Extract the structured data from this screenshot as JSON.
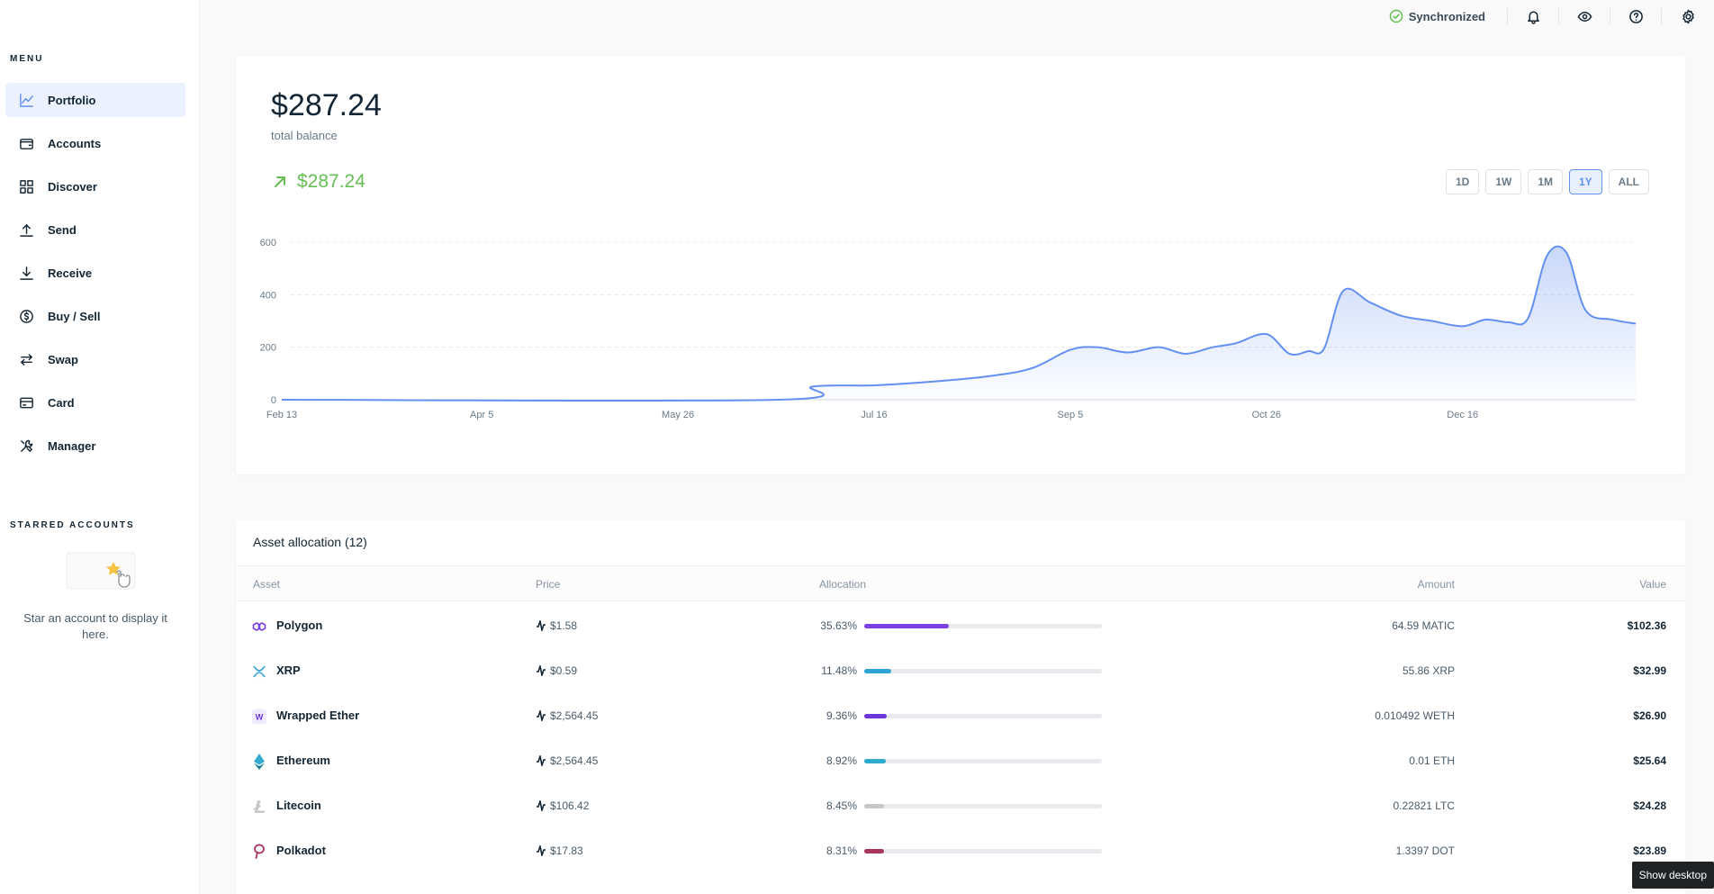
{
  "sidebar": {
    "menu_title": "MENU",
    "items": [
      {
        "label": "Portfolio"
      },
      {
        "label": "Accounts"
      },
      {
        "label": "Discover"
      },
      {
        "label": "Send"
      },
      {
        "label": "Receive"
      },
      {
        "label": "Buy / Sell"
      },
      {
        "label": "Swap"
      },
      {
        "label": "Card"
      },
      {
        "label": "Manager"
      }
    ],
    "starred_title": "STARRED ACCOUNTS",
    "starred_empty_text": "Star an account to display it here."
  },
  "topbar": {
    "sync_label": "Synchronized"
  },
  "balance_card": {
    "balance": "$287.24",
    "balance_label": "total balance",
    "delta": "$287.24",
    "ranges": [
      "1D",
      "1W",
      "1M",
      "1Y",
      "ALL"
    ],
    "active_range": "1Y"
  },
  "chart_data": {
    "type": "area",
    "title": "",
    "xlabel": "",
    "ylabel": "",
    "ylim": [
      0,
      600
    ],
    "yticks": [
      "0",
      "200",
      "400",
      "600"
    ],
    "xticks": [
      "Feb 13",
      "Apr 5",
      "May 26",
      "Jul 16",
      "Sep 5",
      "Oct 26",
      "Dec 16"
    ],
    "x": [
      "Feb 13",
      "Jun 21",
      "Jun 30",
      "Jul 16",
      "Aug 1",
      "Aug 15",
      "Aug 26",
      "Sep 5",
      "Sep 12",
      "Sep 20",
      "Sep 28",
      "Oct 5",
      "Oct 12",
      "Oct 18",
      "Oct 26",
      "Nov 1",
      "Nov 6",
      "Nov 10",
      "Nov 15",
      "Nov 22",
      "Nov 30",
      "Dec 8",
      "Dec 16",
      "Dec 22",
      "Dec 28",
      "Jan 2",
      "Jan 7",
      "Jan 12",
      "Jan 17",
      "Jan 24",
      "Jan 30"
    ],
    "series": [
      {
        "color": "#6490f1",
        "values": [
          0,
          0,
          50,
          55,
          70,
          90,
          120,
          190,
          200,
          180,
          200,
          175,
          200,
          215,
          250,
          175,
          185,
          195,
          415,
          370,
          320,
          300,
          280,
          305,
          295,
          310,
          550,
          560,
          340,
          305,
          290
        ]
      }
    ]
  },
  "assets": {
    "title": "Asset allocation (12)",
    "headers": {
      "asset": "Asset",
      "price": "Price",
      "allocation": "Allocation",
      "amount": "Amount",
      "value": "Value"
    },
    "rows": [
      {
        "name": "Polygon",
        "price": "$1.58",
        "pct": "35.63%",
        "alloc": 0.3563,
        "color": "#7b3fe4",
        "amount": "64.59 MATIC",
        "value": "$102.36",
        "icon": "polygon-icon"
      },
      {
        "name": "XRP",
        "price": "$0.59",
        "pct": "11.48%",
        "alloc": 0.1148,
        "color": "#2fa3d6",
        "amount": "55.86 XRP",
        "value": "$32.99",
        "icon": "xrp-icon"
      },
      {
        "name": "Wrapped Ether",
        "price": "$2,564.45",
        "pct": "9.36%",
        "alloc": 0.0936,
        "color": "#6a37d8",
        "amount": "0.010492 WETH",
        "value": "$26.90",
        "icon": "weth-icon",
        "icon_letter": "W"
      },
      {
        "name": "Ethereum",
        "price": "$2,564.45",
        "pct": "8.92%",
        "alloc": 0.0892,
        "color": "#30aacd",
        "amount": "0.01 ETH",
        "value": "$25.64",
        "icon": "ethereum-icon"
      },
      {
        "name": "Litecoin",
        "price": "$106.42",
        "pct": "8.45%",
        "alloc": 0.0845,
        "color": "#c7c7c7",
        "amount": "0.22821 LTC",
        "value": "$24.28",
        "icon": "litecoin-icon"
      },
      {
        "name": "Polkadot",
        "price": "$17.83",
        "pct": "8.31%",
        "alloc": 0.0831,
        "color": "#a8355a",
        "amount": "1.3397 DOT",
        "value": "$23.89",
        "icon": "polkadot-icon"
      }
    ]
  },
  "tooltip": {
    "text": "Show desktop"
  }
}
